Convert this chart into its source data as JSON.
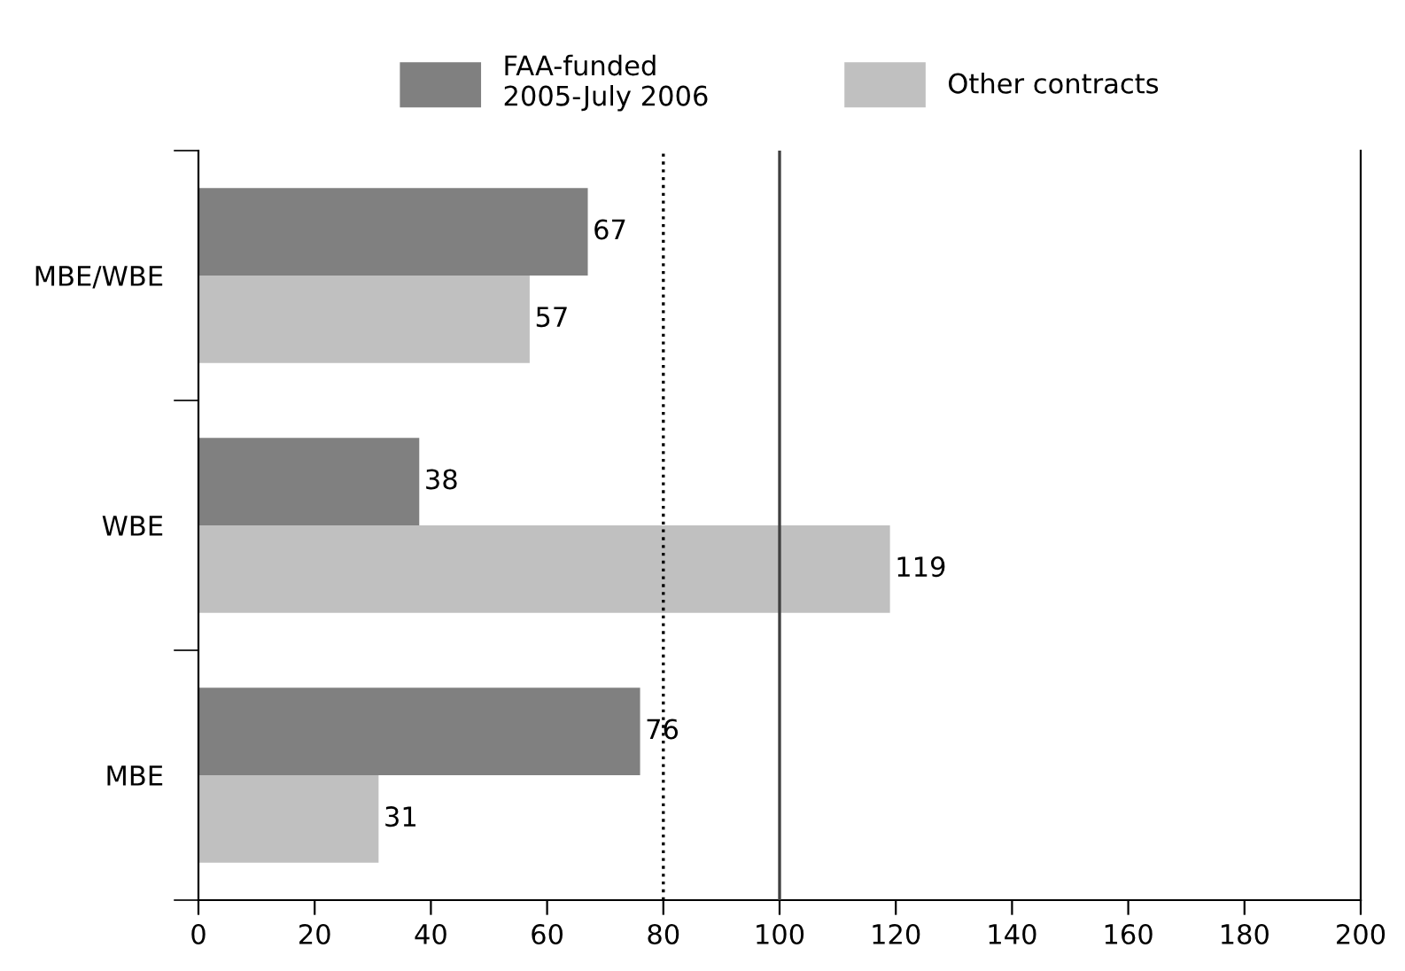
{
  "chart_data": {
    "type": "bar",
    "orientation": "horizontal",
    "categories": [
      "MBE/WBE",
      "WBE",
      "MBE"
    ],
    "series": [
      {
        "name": "FAA-funded\n2005-July 2006",
        "color": "#808080",
        "values": [
          67,
          38,
          76
        ]
      },
      {
        "name": "Other contracts",
        "color": "#c0c0c0",
        "values": [
          57,
          119,
          31
        ]
      }
    ],
    "xlim": [
      0,
      200
    ],
    "xticks": [
      0,
      20,
      40,
      60,
      80,
      100,
      120,
      140,
      160,
      180,
      200
    ],
    "ref_lines": [
      {
        "axis": "x",
        "value": 80,
        "line_style": "dotted",
        "color": "#000000"
      },
      {
        "axis": "x",
        "value": 100,
        "line_style": "solid",
        "color": "#404040"
      }
    ],
    "data_labels": true,
    "legend": "top",
    "grid": false
  }
}
